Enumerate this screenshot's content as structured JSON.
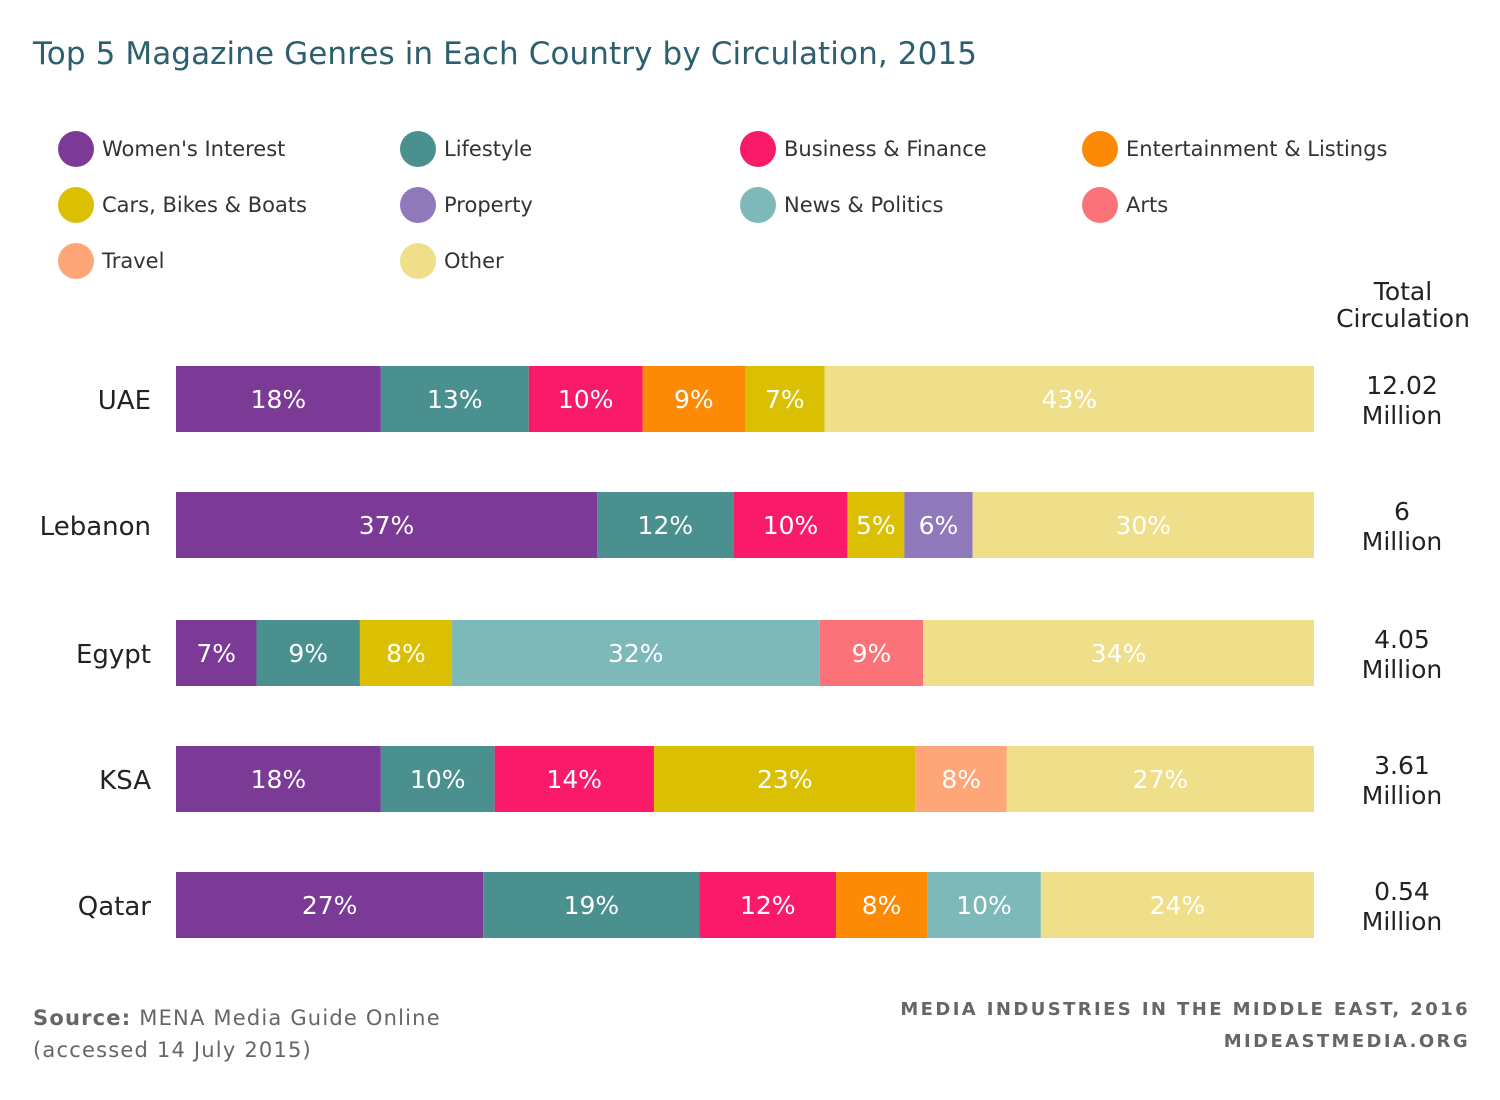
{
  "title": "Top 5 Magazine Genres in Each Country by Circulation, 2015",
  "legend": [
    {
      "label": "Women's Interest",
      "color": "#7b3a96"
    },
    {
      "label": "Lifestyle",
      "color": "#4a908f"
    },
    {
      "label": "Business & Finance",
      "color": "#f91b6a"
    },
    {
      "label": "Entertainment & Listings",
      "color": "#fd8a05"
    },
    {
      "label": "Cars, Bikes & Boats",
      "color": "#dbbf03"
    },
    {
      "label": "Property",
      "color": "#9079bb"
    },
    {
      "label": "News & Politics",
      "color": "#7db9b8"
    },
    {
      "label": "Arts",
      "color": "#fb7379"
    },
    {
      "label": "Travel",
      "color": "#fea677"
    },
    {
      "label": "Other",
      "color": "#efdf8a"
    }
  ],
  "total_header": "Total Circulation",
  "chart_data": {
    "type": "bar",
    "orientation": "horizontal",
    "stacked": true,
    "categories": [
      "UAE",
      "Lebanon",
      "Egypt",
      "KSA",
      "Qatar"
    ],
    "unit": "%",
    "xlim": [
      0,
      100
    ],
    "grid": false,
    "legend_position": "top",
    "rows": [
      {
        "country": "UAE",
        "total": [
          "12.02",
          "Million"
        ],
        "segments": [
          {
            "genre": "Women's Interest",
            "value": 18,
            "label": "18%"
          },
          {
            "genre": "Lifestyle",
            "value": 13,
            "label": "13%"
          },
          {
            "genre": "Business & Finance",
            "value": 10,
            "label": "10%"
          },
          {
            "genre": "Entertainment & Listings",
            "value": 9,
            "label": "9%"
          },
          {
            "genre": "Cars, Bikes & Boats",
            "value": 7,
            "label": "7%"
          },
          {
            "genre": "Other",
            "value": 43,
            "label": "43%"
          }
        ]
      },
      {
        "country": "Lebanon",
        "total": [
          "6",
          "Million"
        ],
        "segments": [
          {
            "genre": "Women's Interest",
            "value": 37,
            "label": "37%"
          },
          {
            "genre": "Lifestyle",
            "value": 12,
            "label": "12%"
          },
          {
            "genre": "Business & Finance",
            "value": 10,
            "label": "10%"
          },
          {
            "genre": "Cars, Bikes & Boats",
            "value": 5,
            "label": "5%"
          },
          {
            "genre": "Property",
            "value": 6,
            "label": "6%"
          },
          {
            "genre": "Other",
            "value": 30,
            "label": "30%"
          }
        ]
      },
      {
        "country": "Egypt",
        "total": [
          "4.05",
          "Million"
        ],
        "segments": [
          {
            "genre": "Women's Interest",
            "value": 7,
            "label": "7%"
          },
          {
            "genre": "Lifestyle",
            "value": 9,
            "label": "9%"
          },
          {
            "genre": "Cars, Bikes & Boats",
            "value": 8,
            "label": "8%"
          },
          {
            "genre": "News & Politics",
            "value": 32,
            "label": "32%"
          },
          {
            "genre": "Arts",
            "value": 9,
            "label": "9%"
          },
          {
            "genre": "Other",
            "value": 34,
            "label": "34%"
          }
        ]
      },
      {
        "country": "KSA",
        "total": [
          "3.61",
          "Million"
        ],
        "segments": [
          {
            "genre": "Women's Interest",
            "value": 18,
            "label": "18%"
          },
          {
            "genre": "Lifestyle",
            "value": 10,
            "label": "10%"
          },
          {
            "genre": "Business & Finance",
            "value": 14,
            "label": "14%"
          },
          {
            "genre": "Cars, Bikes & Boats",
            "value": 23,
            "label": "23%"
          },
          {
            "genre": "Travel",
            "value": 8,
            "label": "8%"
          },
          {
            "genre": "Other",
            "value": 27,
            "label": "27%"
          }
        ]
      },
      {
        "country": "Qatar",
        "total": [
          "0.54",
          "Million"
        ],
        "segments": [
          {
            "genre": "Women's Interest",
            "value": 27,
            "label": "27%"
          },
          {
            "genre": "Lifestyle",
            "value": 19,
            "label": "19%"
          },
          {
            "genre": "Business & Finance",
            "value": 12,
            "label": "12%"
          },
          {
            "genre": "Entertainment & Listings",
            "value": 8,
            "label": "8%"
          },
          {
            "genre": "News & Politics",
            "value": 10,
            "label": "10%"
          },
          {
            "genre": "Other",
            "value": 24,
            "label": "24%"
          }
        ]
      }
    ]
  },
  "source": {
    "label": "Source:",
    "text": "MENA Media Guide Online",
    "accessed": "(accessed 14 July 2015)"
  },
  "credit": {
    "line1": "MEDIA INDUSTRIES IN THE MIDDLE EAST, 2016",
    "line2": "MIDEASTMEDIA.ORG"
  }
}
